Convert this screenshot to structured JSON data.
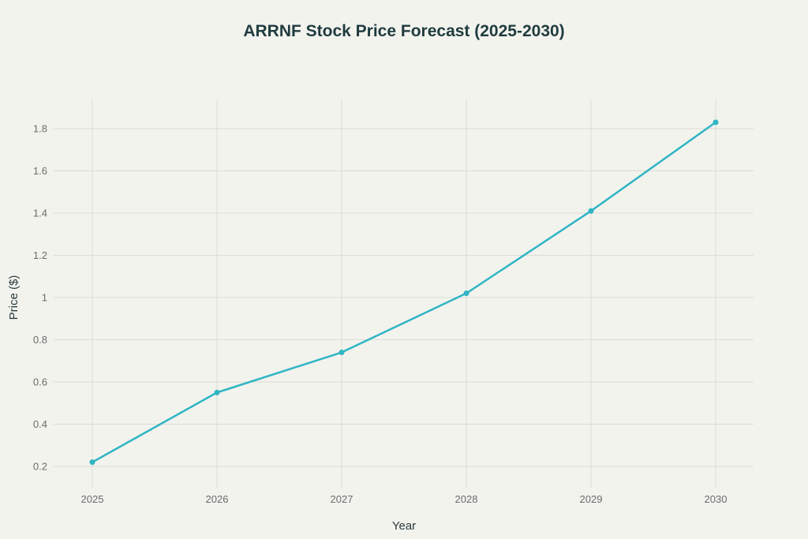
{
  "chart_data": {
    "type": "line",
    "title": "ARRNF Stock Price Forecast (2025-2030)",
    "xlabel": "Year",
    "ylabel": "Price ($)",
    "categories": [
      "2025",
      "2026",
      "2027",
      "2028",
      "2029",
      "2030"
    ],
    "y_ticks": [
      "0.2",
      "0.4",
      "0.6",
      "0.8",
      "1",
      "1.2",
      "1.4",
      "1.6",
      "1.8"
    ],
    "ylim": [
      0.09,
      1.93
    ],
    "grid": true,
    "series": [
      {
        "values": [
          0.22,
          0.55,
          0.74,
          1.02,
          1.41,
          1.83
        ],
        "color": "#2fb5c4"
      }
    ],
    "colors": {
      "background": "#f3f3ee",
      "grid": "#dcdcd6",
      "title": "#1f3b3f"
    }
  }
}
